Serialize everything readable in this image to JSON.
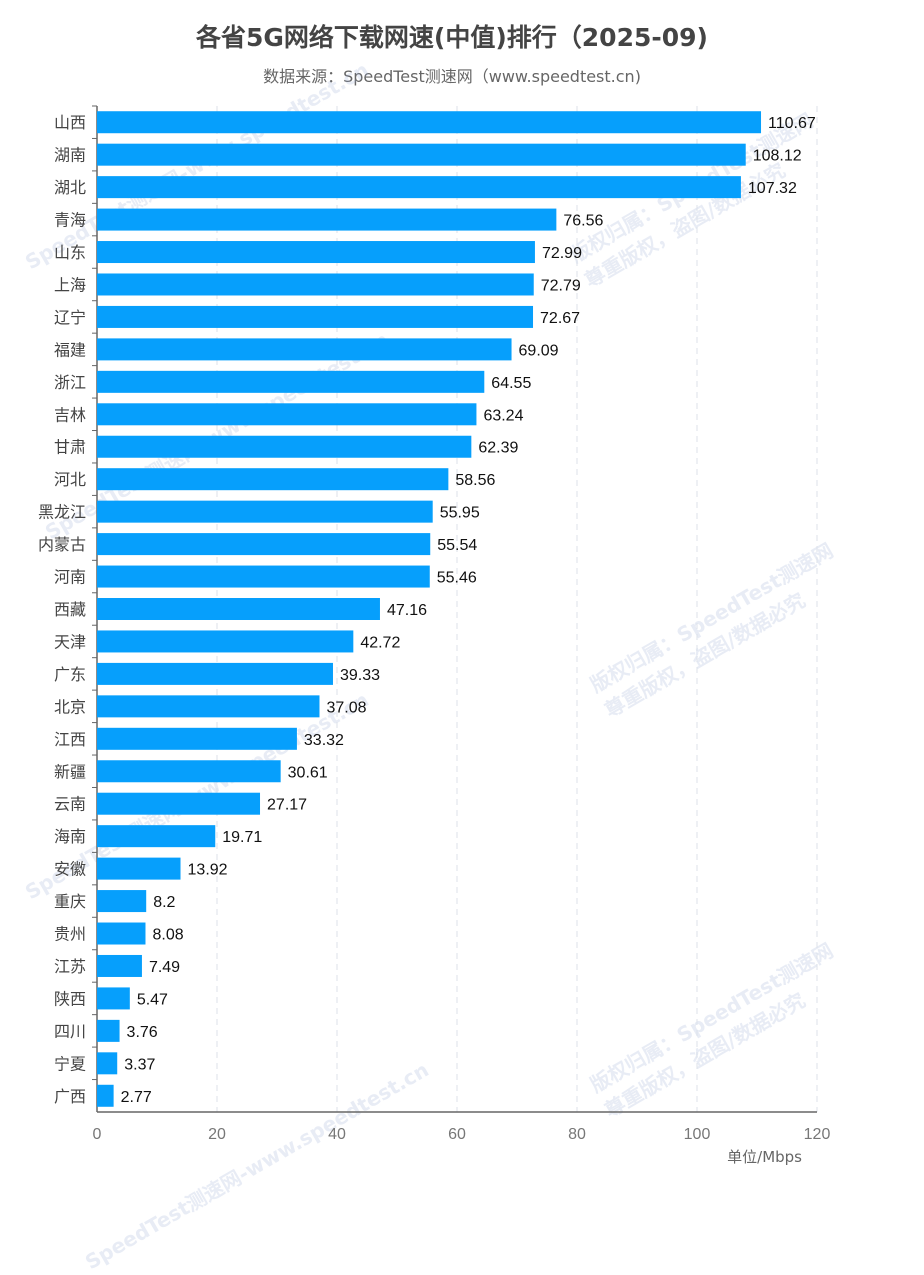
{
  "watermark": {
    "line1": "SpeedTest测速网-www.speedtest.cn",
    "line2": "版权归属：SpeedTest测速网",
    "line3": "尊重版权，盗图/数据必究"
  },
  "colors": {
    "bar": "#069ffc",
    "grid": "#dde2ea",
    "axis": "#666666"
  },
  "chart_data": {
    "type": "bar",
    "orientation": "horizontal",
    "title": "各省5G网络下载网速(中值)排行（2025-09)",
    "subtitle": "数据来源：SpeedTest测速网（www.speedtest.cn)",
    "xlabel": "单位/Mbps",
    "xlim": [
      0,
      120
    ],
    "xticks": [
      0,
      20,
      40,
      60,
      80,
      100,
      120
    ],
    "grid": true,
    "categories": [
      "山西",
      "湖南",
      "湖北",
      "青海",
      "山东",
      "上海",
      "辽宁",
      "福建",
      "浙江",
      "吉林",
      "甘肃",
      "河北",
      "黑龙江",
      "内蒙古",
      "河南",
      "西藏",
      "天津",
      "广东",
      "北京",
      "江西",
      "新疆",
      "云南",
      "海南",
      "安徽",
      "重庆",
      "贵州",
      "江苏",
      "陕西",
      "四川",
      "宁夏",
      "广西"
    ],
    "values": [
      110.67,
      108.12,
      107.32,
      76.56,
      72.99,
      72.79,
      72.67,
      69.09,
      64.55,
      63.24,
      62.39,
      58.56,
      55.95,
      55.54,
      55.46,
      47.16,
      42.72,
      39.33,
      37.08,
      33.32,
      30.61,
      27.17,
      19.71,
      13.92,
      8.2,
      8.08,
      7.49,
      5.47,
      3.76,
      3.37,
      2.77
    ]
  }
}
